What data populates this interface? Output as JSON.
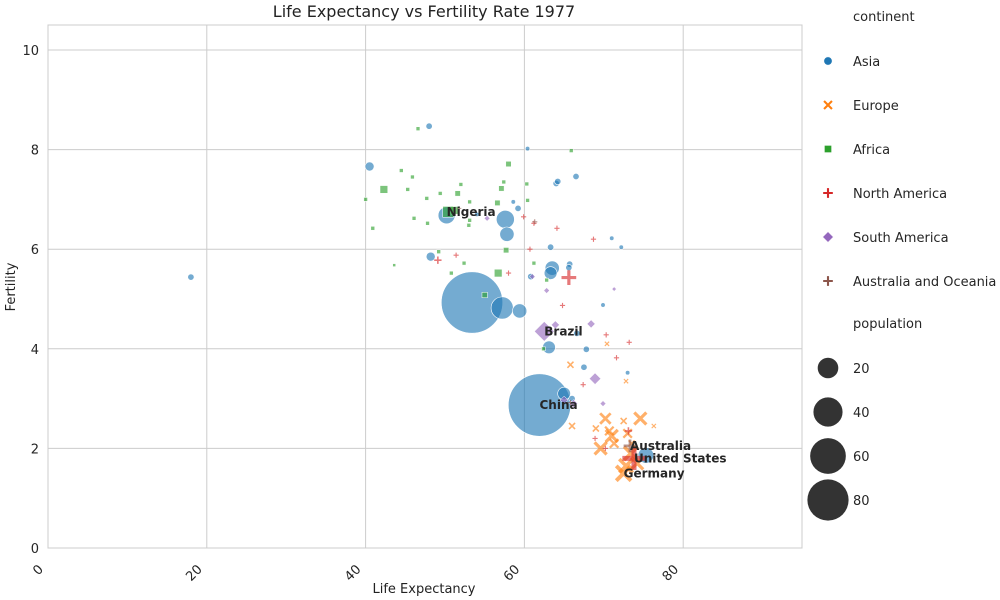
{
  "chart_data": {
    "type": "scatter",
    "title": "Life Expectancy vs Fertility Rate 1977",
    "xlabel": "Life Expectancy",
    "ylabel": "Fertility",
    "xlim": [
      0,
      95
    ],
    "ylim": [
      0,
      10.5
    ],
    "xticks": [
      "0",
      "20",
      "40",
      "60",
      "80"
    ],
    "yticks": [
      "0",
      "2",
      "4",
      "6",
      "8",
      "10"
    ],
    "grid": true,
    "legend_position": "right",
    "legend": {
      "hue_title": "continent",
      "size_title": "population",
      "size_entries": [
        "20",
        "40",
        "60",
        "80"
      ]
    },
    "series": [
      {
        "name": "Asia",
        "color": "#1f77b4",
        "marker": "circle",
        "points": [
          {
            "x": 53.4,
            "y": 4.93,
            "pop": 92
          },
          {
            "x": 61.9,
            "y": 2.87,
            "pop": 95
          },
          {
            "x": 57.2,
            "y": 4.82,
            "pop": 12
          },
          {
            "x": 57.6,
            "y": 6.6,
            "pop": 8
          },
          {
            "x": 50.2,
            "y": 6.68,
            "pop": 7
          },
          {
            "x": 57.8,
            "y": 6.3,
            "pop": 5
          },
          {
            "x": 59.4,
            "y": 4.76,
            "pop": 5
          },
          {
            "x": 63.5,
            "y": 5.62,
            "pop": 5
          },
          {
            "x": 63.3,
            "y": 5.52,
            "pop": 4
          },
          {
            "x": 63.1,
            "y": 4.03,
            "pop": 4
          },
          {
            "x": 65.0,
            "y": 3.1,
            "pop": 4
          },
          {
            "x": 75.3,
            "y": 1.86,
            "pop": 6
          },
          {
            "x": 18.0,
            "y": 5.44,
            "pop": 1
          },
          {
            "x": 40.5,
            "y": 7.66,
            "pop": 2
          },
          {
            "x": 48.0,
            "y": 8.47,
            "pop": 1
          },
          {
            "x": 48.2,
            "y": 5.85,
            "pop": 2
          },
          {
            "x": 64.0,
            "y": 7.32,
            "pop": 1
          },
          {
            "x": 64.2,
            "y": 7.36,
            "pop": 1
          },
          {
            "x": 66.5,
            "y": 7.46,
            "pop": 1
          },
          {
            "x": 60.4,
            "y": 8.02,
            "pop": 0.5
          },
          {
            "x": 59.2,
            "y": 6.82,
            "pop": 1
          },
          {
            "x": 63.3,
            "y": 6.04,
            "pop": 1
          },
          {
            "x": 65.7,
            "y": 5.7,
            "pop": 1
          },
          {
            "x": 65.6,
            "y": 5.63,
            "pop": 1
          },
          {
            "x": 67.8,
            "y": 3.99,
            "pop": 1
          },
          {
            "x": 67.5,
            "y": 3.63,
            "pop": 1
          },
          {
            "x": 66.6,
            "y": 4.31,
            "pop": 1
          },
          {
            "x": 73.0,
            "y": 3.52,
            "pop": 0.5
          },
          {
            "x": 71.0,
            "y": 6.22,
            "pop": 0.5
          },
          {
            "x": 72.2,
            "y": 6.04,
            "pop": 0.5
          },
          {
            "x": 69.9,
            "y": 4.88,
            "pop": 0.5
          },
          {
            "x": 60.8,
            "y": 5.45,
            "pop": 1
          },
          {
            "x": 58.6,
            "y": 6.95,
            "pop": 0.5
          },
          {
            "x": 66.0,
            "y": 3.0,
            "pop": 1
          },
          {
            "x": 54.0,
            "y": 6.7,
            "pop": 0.5
          }
        ]
      },
      {
        "name": "Europe",
        "color": "#ff7f0e",
        "marker": "x",
        "points": [
          {
            "x": 72.5,
            "y": 1.5,
            "pop": 6
          },
          {
            "x": 72.8,
            "y": 1.65,
            "pop": 5
          },
          {
            "x": 73.4,
            "y": 1.9,
            "pop": 5
          },
          {
            "x": 74.2,
            "y": 1.7,
            "pop": 4
          },
          {
            "x": 74.6,
            "y": 2.6,
            "pop": 4
          },
          {
            "x": 69.6,
            "y": 2.0,
            "pop": 4
          },
          {
            "x": 71.0,
            "y": 2.25,
            "pop": 4
          },
          {
            "x": 70.2,
            "y": 2.6,
            "pop": 3
          },
          {
            "x": 71.3,
            "y": 2.1,
            "pop": 2
          },
          {
            "x": 70.7,
            "y": 2.35,
            "pop": 2
          },
          {
            "x": 73.0,
            "y": 2.3,
            "pop": 2
          },
          {
            "x": 72.5,
            "y": 2.55,
            "pop": 1
          },
          {
            "x": 65.8,
            "y": 3.68,
            "pop": 1
          },
          {
            "x": 66.0,
            "y": 2.45,
            "pop": 1
          },
          {
            "x": 70.4,
            "y": 4.1,
            "pop": 0.5
          },
          {
            "x": 72.8,
            "y": 3.35,
            "pop": 0.5
          },
          {
            "x": 69.0,
            "y": 2.4,
            "pop": 1
          },
          {
            "x": 73.5,
            "y": 2.1,
            "pop": 1
          },
          {
            "x": 76.3,
            "y": 2.45,
            "pop": 0.5
          }
        ]
      },
      {
        "name": "Africa",
        "color": "#2ca02c",
        "marker": "square",
        "points": [
          {
            "x": 42.3,
            "y": 7.2,
            "pop": 2
          },
          {
            "x": 51.2,
            "y": 6.78,
            "pop": 2
          },
          {
            "x": 50.4,
            "y": 6.75,
            "pop": 4
          },
          {
            "x": 56.7,
            "y": 5.52,
            "pop": 2
          },
          {
            "x": 57.7,
            "y": 5.98,
            "pop": 1
          },
          {
            "x": 55.0,
            "y": 5.08,
            "pop": 1
          },
          {
            "x": 46.6,
            "y": 8.42,
            "pop": 0.5
          },
          {
            "x": 40.0,
            "y": 7.0,
            "pop": 0.5
          },
          {
            "x": 44.5,
            "y": 7.58,
            "pop": 0.5
          },
          {
            "x": 45.3,
            "y": 7.2,
            "pop": 0.5
          },
          {
            "x": 45.9,
            "y": 7.45,
            "pop": 0.5
          },
          {
            "x": 47.7,
            "y": 7.02,
            "pop": 0.5
          },
          {
            "x": 49.4,
            "y": 7.12,
            "pop": 0.5
          },
          {
            "x": 52.0,
            "y": 7.3,
            "pop": 0.5
          },
          {
            "x": 51.6,
            "y": 7.12,
            "pop": 1
          },
          {
            "x": 53.1,
            "y": 6.95,
            "pop": 0.5
          },
          {
            "x": 56.6,
            "y": 6.93,
            "pop": 1
          },
          {
            "x": 57.1,
            "y": 7.22,
            "pop": 1
          },
          {
            "x": 57.4,
            "y": 7.35,
            "pop": 0.5
          },
          {
            "x": 58.0,
            "y": 7.71,
            "pop": 1
          },
          {
            "x": 60.3,
            "y": 7.31,
            "pop": 0.5
          },
          {
            "x": 60.4,
            "y": 6.98,
            "pop": 0.5
          },
          {
            "x": 65.9,
            "y": 7.98,
            "pop": 0.5
          },
          {
            "x": 47.8,
            "y": 6.52,
            "pop": 0.5
          },
          {
            "x": 49.2,
            "y": 5.95,
            "pop": 0.5
          },
          {
            "x": 53.0,
            "y": 6.48,
            "pop": 0.5
          },
          {
            "x": 53.1,
            "y": 6.58,
            "pop": 0.5
          },
          {
            "x": 40.9,
            "y": 6.42,
            "pop": 0.5
          },
          {
            "x": 46.1,
            "y": 6.62,
            "pop": 0.5
          },
          {
            "x": 52.4,
            "y": 5.72,
            "pop": 0.5
          },
          {
            "x": 50.8,
            "y": 5.52,
            "pop": 0.5
          },
          {
            "x": 61.2,
            "y": 5.72,
            "pop": 0.5
          },
          {
            "x": 62.8,
            "y": 5.38,
            "pop": 0.5
          },
          {
            "x": 62.4,
            "y": 4.0,
            "pop": 0.5
          },
          {
            "x": 43.6,
            "y": 5.68,
            "pop": 0.3
          }
        ]
      },
      {
        "name": "North America",
        "color": "#d62728",
        "marker": "plus",
        "points": [
          {
            "x": 73.8,
            "y": 1.8,
            "pop": 10
          },
          {
            "x": 65.6,
            "y": 5.43,
            "pop": 4
          },
          {
            "x": 73.1,
            "y": 2.35,
            "pop": 1
          },
          {
            "x": 59.9,
            "y": 6.65,
            "pop": 0.5
          },
          {
            "x": 61.2,
            "y": 6.52,
            "pop": 0.5
          },
          {
            "x": 64.1,
            "y": 6.42,
            "pop": 0.5
          },
          {
            "x": 68.7,
            "y": 6.2,
            "pop": 0.5
          },
          {
            "x": 60.7,
            "y": 6.0,
            "pop": 0.5
          },
          {
            "x": 58.0,
            "y": 5.52,
            "pop": 0.5
          },
          {
            "x": 49.1,
            "y": 5.78,
            "pop": 1
          },
          {
            "x": 51.4,
            "y": 5.88,
            "pop": 0.5
          },
          {
            "x": 64.8,
            "y": 4.87,
            "pop": 0.5
          },
          {
            "x": 70.3,
            "y": 4.28,
            "pop": 0.5
          },
          {
            "x": 73.2,
            "y": 4.13,
            "pop": 0.5
          },
          {
            "x": 71.6,
            "y": 3.82,
            "pop": 0.5
          },
          {
            "x": 67.4,
            "y": 3.28,
            "pop": 0.5
          },
          {
            "x": 68.9,
            "y": 2.2,
            "pop": 0.5
          },
          {
            "x": 70.2,
            "y": 2.0,
            "pop": 0.5
          }
        ]
      },
      {
        "name": "South America",
        "color": "#9467bd",
        "marker": "diamond",
        "points": [
          {
            "x": 62.5,
            "y": 4.35,
            "pop": 6
          },
          {
            "x": 68.9,
            "y": 3.4,
            "pop": 2
          },
          {
            "x": 68.4,
            "y": 4.5,
            "pop": 1
          },
          {
            "x": 65.0,
            "y": 2.97,
            "pop": 1
          },
          {
            "x": 63.9,
            "y": 4.48,
            "pop": 1
          },
          {
            "x": 66.2,
            "y": 2.9,
            "pop": 1
          },
          {
            "x": 62.8,
            "y": 5.17,
            "pop": 0.5
          },
          {
            "x": 55.3,
            "y": 6.62,
            "pop": 0.5
          },
          {
            "x": 61.0,
            "y": 5.45,
            "pop": 0.5
          },
          {
            "x": 71.3,
            "y": 5.2,
            "pop": 0.3
          },
          {
            "x": 69.9,
            "y": 2.9,
            "pop": 0.5
          }
        ]
      },
      {
        "name": "Australia and Oceania",
        "color": "#8c564b",
        "marker": "plus",
        "points": [
          {
            "x": 73.3,
            "y": 2.05,
            "pop": 3
          },
          {
            "x": 65.8,
            "y": 2.92,
            "pop": 0.5
          },
          {
            "x": 61.3,
            "y": 6.55,
            "pop": 0.5
          },
          {
            "x": 51.8,
            "y": 6.82,
            "pop": 0.3
          }
        ]
      }
    ],
    "annotations": [
      {
        "text": "Nigeria",
        "x": 50.2,
        "y": 6.75
      },
      {
        "text": "Brazil",
        "x": 62.5,
        "y": 4.35
      },
      {
        "text": "China",
        "x": 61.9,
        "y": 2.87
      },
      {
        "text": "Australia",
        "x": 73.3,
        "y": 2.05
      },
      {
        "text": "United States",
        "x": 73.8,
        "y": 1.8
      },
      {
        "text": "Germany",
        "x": 72.5,
        "y": 1.5
      }
    ]
  }
}
